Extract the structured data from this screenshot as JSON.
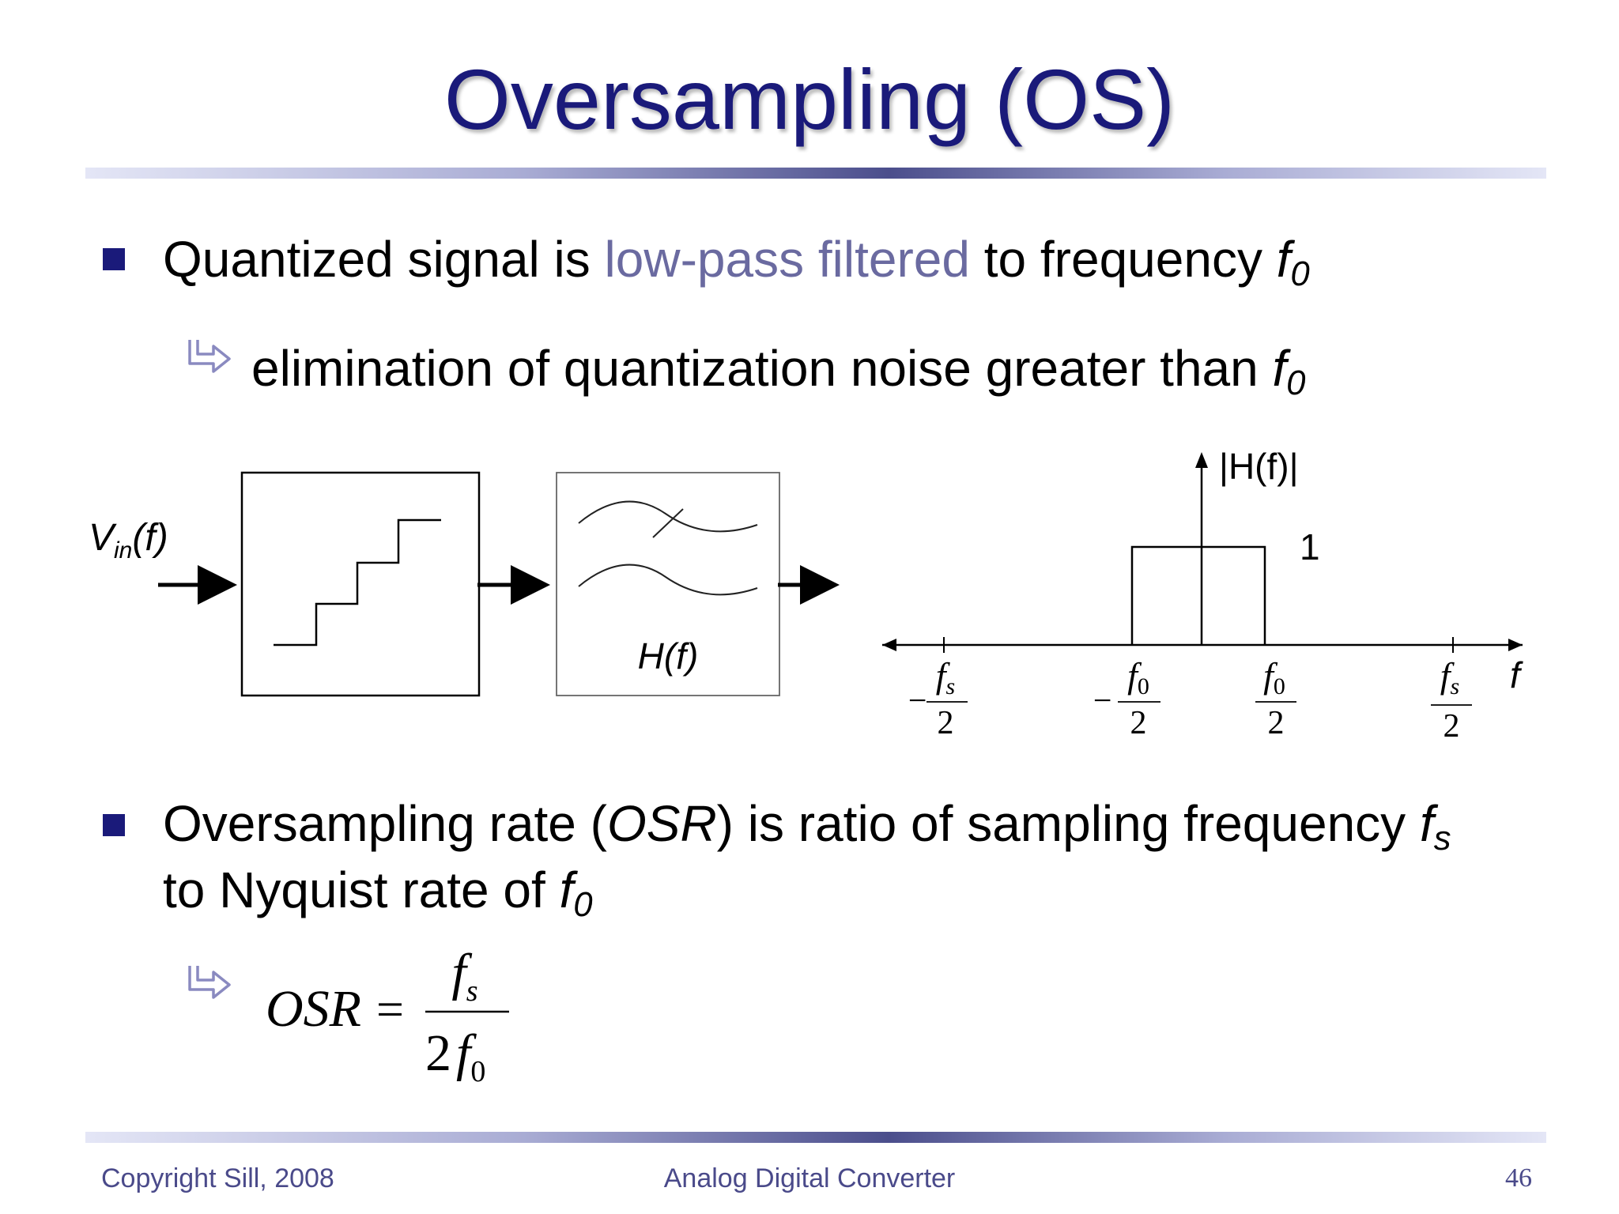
{
  "slide": {
    "title": "Oversampling (OS)",
    "bullets": [
      {
        "pre": "Quantized signal is ",
        "highlight": "low-pass filtered",
        "post": " to frequency ",
        "var": "f",
        "var_sub": "0",
        "sub_point": {
          "text": "elimination of quantization noise greater than ",
          "var": "f",
          "var_sub": "0"
        }
      },
      {
        "line1_pre": "Oversampling rate (",
        "line1_italic": "OSR",
        "line1_post": ") is ratio of sampling frequency ",
        "line1_var": "f",
        "line1_var_sub": "s",
        "line2_pre": "to Nyquist rate of ",
        "line2_var": "f",
        "line2_var_sub": "0"
      }
    ],
    "formula": {
      "lhs": "OSR",
      "equals": "=",
      "num_var": "f",
      "num_sub": "s",
      "den_coef": "2",
      "den_var": "f",
      "den_sub": "0"
    },
    "diagram": {
      "input_label": "V",
      "input_sub": "in",
      "input_tail": "(f)",
      "filter_label": "H(f)",
      "plot": {
        "y_label": "|H(f)|",
        "level_label": "1",
        "x_label": "f",
        "minus": "−",
        "ticks": [
          {
            "sign": "−",
            "var": "f",
            "sub": "s",
            "den": "2"
          },
          {
            "sign": "−",
            "var": "f",
            "sub": "0",
            "den": "2"
          },
          {
            "sign": "",
            "var": "f",
            "sub": "0",
            "den": "2"
          },
          {
            "sign": "",
            "var": "f",
            "sub": "s",
            "den": "2"
          }
        ]
      }
    },
    "footer": {
      "left": "Copyright Sill, 2008",
      "center": "Analog Digital Converter",
      "page": "46"
    }
  },
  "colors": {
    "title": "#1a1a7a",
    "highlight": "#6a6aa0",
    "footer": "#4a4a8a",
    "bullet": "#1a1a7a"
  }
}
